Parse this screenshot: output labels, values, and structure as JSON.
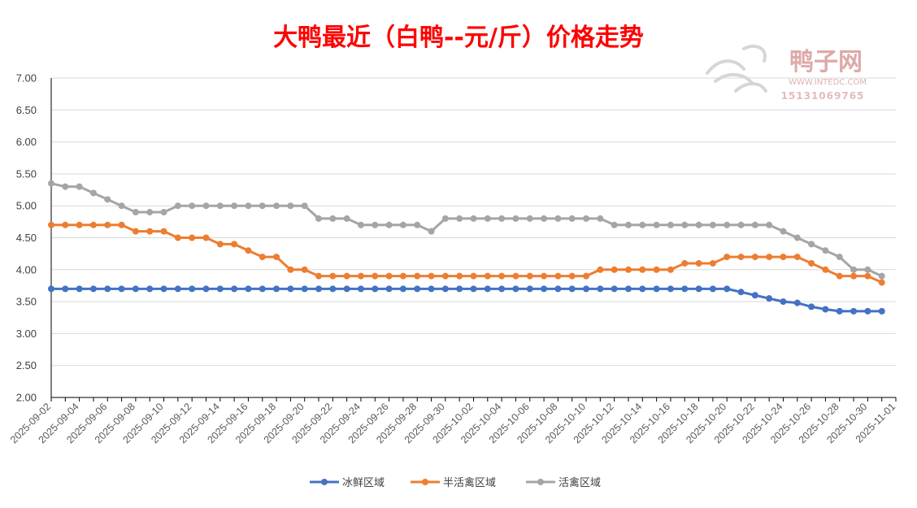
{
  "chart_data": {
    "type": "line",
    "title": "大鸭最近（白鸭--元/斤）价格走势",
    "ylim": [
      2.0,
      7.0
    ],
    "y_ticks": [
      "7.00",
      "6.50",
      "6.00",
      "5.50",
      "5.00",
      "4.50",
      "4.00",
      "3.50",
      "3.00",
      "2.50",
      "2.00"
    ],
    "x_tick_labels": [
      "2025-09-02",
      "2025-09-04",
      "2025-09-06",
      "2025-09-08",
      "2025-09-10",
      "2025-09-12",
      "2025-09-14",
      "2025-09-16",
      "2025-09-18",
      "2025-09-20",
      "2025-09-22",
      "2025-09-24",
      "2025-09-26",
      "2025-09-28",
      "2025-09-30",
      "2025-10-02",
      "2025-10-04",
      "2025-10-06",
      "2025-10-08",
      "2025-10-10",
      "2025-10-12",
      "2025-10-14",
      "2025-10-16",
      "2025-10-18",
      "2025-10-20",
      "2025-10-22",
      "2025-10-24",
      "2025-10-26",
      "2025-10-28",
      "2025-10-30",
      "2025-11-01"
    ],
    "x_start": "2025-09-02",
    "x_end": "2025-11-01",
    "grid": true,
    "legend_position": "bottom",
    "series": [
      {
        "name": "冰鲜区域",
        "color": "#4472C4",
        "points": [
          [
            "2025-09-02",
            3.7
          ],
          [
            "2025-09-03",
            3.7
          ],
          [
            "2025-09-04",
            3.7
          ],
          [
            "2025-09-05",
            3.7
          ],
          [
            "2025-09-06",
            3.7
          ],
          [
            "2025-09-07",
            3.7
          ],
          [
            "2025-09-08",
            3.7
          ],
          [
            "2025-09-09",
            3.7
          ],
          [
            "2025-09-10",
            3.7
          ],
          [
            "2025-09-11",
            3.7
          ],
          [
            "2025-09-12",
            3.7
          ],
          [
            "2025-09-13",
            3.7
          ],
          [
            "2025-09-14",
            3.7
          ],
          [
            "2025-09-15",
            3.7
          ],
          [
            "2025-09-16",
            3.7
          ],
          [
            "2025-09-17",
            3.7
          ],
          [
            "2025-09-18",
            3.7
          ],
          [
            "2025-09-19",
            3.7
          ],
          [
            "2025-09-20",
            3.7
          ],
          [
            "2025-09-21",
            3.7
          ],
          [
            "2025-09-22",
            3.7
          ],
          [
            "2025-09-23",
            3.7
          ],
          [
            "2025-09-24",
            3.7
          ],
          [
            "2025-09-25",
            3.7
          ],
          [
            "2025-09-26",
            3.7
          ],
          [
            "2025-09-27",
            3.7
          ],
          [
            "2025-09-28",
            3.7
          ],
          [
            "2025-09-29",
            3.7
          ],
          [
            "2025-09-30",
            3.7
          ],
          [
            "2025-10-01",
            3.7
          ],
          [
            "2025-10-02",
            3.7
          ],
          [
            "2025-10-03",
            3.7
          ],
          [
            "2025-10-04",
            3.7
          ],
          [
            "2025-10-05",
            3.7
          ],
          [
            "2025-10-06",
            3.7
          ],
          [
            "2025-10-07",
            3.7
          ],
          [
            "2025-10-08",
            3.7
          ],
          [
            "2025-10-09",
            3.7
          ],
          [
            "2025-10-10",
            3.7
          ],
          [
            "2025-10-11",
            3.7
          ],
          [
            "2025-10-12",
            3.7
          ],
          [
            "2025-10-13",
            3.7
          ],
          [
            "2025-10-14",
            3.7
          ],
          [
            "2025-10-15",
            3.7
          ],
          [
            "2025-10-16",
            3.7
          ],
          [
            "2025-10-17",
            3.7
          ],
          [
            "2025-10-18",
            3.7
          ],
          [
            "2025-10-19",
            3.7
          ],
          [
            "2025-10-20",
            3.7
          ],
          [
            "2025-10-21",
            3.65
          ],
          [
            "2025-10-22",
            3.6
          ],
          [
            "2025-10-23",
            3.55
          ],
          [
            "2025-10-24",
            3.5
          ],
          [
            "2025-10-25",
            3.48
          ],
          [
            "2025-10-26",
            3.42
          ],
          [
            "2025-10-27",
            3.38
          ],
          [
            "2025-10-28",
            3.35
          ],
          [
            "2025-10-29",
            3.35
          ],
          [
            "2025-10-30",
            3.35
          ],
          [
            "2025-10-31",
            3.35
          ]
        ]
      },
      {
        "name": "半活禽区域",
        "color": "#ED7D31",
        "points": [
          [
            "2025-09-02",
            4.7
          ],
          [
            "2025-09-03",
            4.7
          ],
          [
            "2025-09-04",
            4.7
          ],
          [
            "2025-09-05",
            4.7
          ],
          [
            "2025-09-06",
            4.7
          ],
          [
            "2025-09-07",
            4.7
          ],
          [
            "2025-09-08",
            4.6
          ],
          [
            "2025-09-09",
            4.6
          ],
          [
            "2025-09-10",
            4.6
          ],
          [
            "2025-09-11",
            4.5
          ],
          [
            "2025-09-12",
            4.5
          ],
          [
            "2025-09-13",
            4.5
          ],
          [
            "2025-09-14",
            4.4
          ],
          [
            "2025-09-15",
            4.4
          ],
          [
            "2025-09-16",
            4.3
          ],
          [
            "2025-09-17",
            4.2
          ],
          [
            "2025-09-18",
            4.2
          ],
          [
            "2025-09-19",
            4.0
          ],
          [
            "2025-09-20",
            4.0
          ],
          [
            "2025-09-21",
            3.9
          ],
          [
            "2025-09-22",
            3.9
          ],
          [
            "2025-09-23",
            3.9
          ],
          [
            "2025-09-24",
            3.9
          ],
          [
            "2025-09-25",
            3.9
          ],
          [
            "2025-09-26",
            3.9
          ],
          [
            "2025-09-27",
            3.9
          ],
          [
            "2025-09-28",
            3.9
          ],
          [
            "2025-09-29",
            3.9
          ],
          [
            "2025-09-30",
            3.9
          ],
          [
            "2025-10-01",
            3.9
          ],
          [
            "2025-10-02",
            3.9
          ],
          [
            "2025-10-03",
            3.9
          ],
          [
            "2025-10-04",
            3.9
          ],
          [
            "2025-10-05",
            3.9
          ],
          [
            "2025-10-06",
            3.9
          ],
          [
            "2025-10-07",
            3.9
          ],
          [
            "2025-10-08",
            3.9
          ],
          [
            "2025-10-09",
            3.9
          ],
          [
            "2025-10-10",
            3.9
          ],
          [
            "2025-10-11",
            4.0
          ],
          [
            "2025-10-12",
            4.0
          ],
          [
            "2025-10-13",
            4.0
          ],
          [
            "2025-10-14",
            4.0
          ],
          [
            "2025-10-15",
            4.0
          ],
          [
            "2025-10-16",
            4.0
          ],
          [
            "2025-10-17",
            4.1
          ],
          [
            "2025-10-18",
            4.1
          ],
          [
            "2025-10-19",
            4.1
          ],
          [
            "2025-10-20",
            4.2
          ],
          [
            "2025-10-21",
            4.2
          ],
          [
            "2025-10-22",
            4.2
          ],
          [
            "2025-10-23",
            4.2
          ],
          [
            "2025-10-24",
            4.2
          ],
          [
            "2025-10-25",
            4.2
          ],
          [
            "2025-10-26",
            4.1
          ],
          [
            "2025-10-27",
            4.0
          ],
          [
            "2025-10-28",
            3.9
          ],
          [
            "2025-10-29",
            3.9
          ],
          [
            "2025-10-30",
            3.9
          ],
          [
            "2025-10-31",
            3.8
          ]
        ]
      },
      {
        "name": "活禽区域",
        "color": "#A5A5A5",
        "points": [
          [
            "2025-09-02",
            5.35
          ],
          [
            "2025-09-03",
            5.3
          ],
          [
            "2025-09-04",
            5.3
          ],
          [
            "2025-09-05",
            5.2
          ],
          [
            "2025-09-06",
            5.1
          ],
          [
            "2025-09-07",
            5.0
          ],
          [
            "2025-09-08",
            4.9
          ],
          [
            "2025-09-09",
            4.9
          ],
          [
            "2025-09-10",
            4.9
          ],
          [
            "2025-09-11",
            5.0
          ],
          [
            "2025-09-12",
            5.0
          ],
          [
            "2025-09-13",
            5.0
          ],
          [
            "2025-09-14",
            5.0
          ],
          [
            "2025-09-15",
            5.0
          ],
          [
            "2025-09-16",
            5.0
          ],
          [
            "2025-09-17",
            5.0
          ],
          [
            "2025-09-18",
            5.0
          ],
          [
            "2025-09-19",
            5.0
          ],
          [
            "2025-09-20",
            5.0
          ],
          [
            "2025-09-21",
            4.8
          ],
          [
            "2025-09-22",
            4.8
          ],
          [
            "2025-09-23",
            4.8
          ],
          [
            "2025-09-24",
            4.7
          ],
          [
            "2025-09-25",
            4.7
          ],
          [
            "2025-09-26",
            4.7
          ],
          [
            "2025-09-27",
            4.7
          ],
          [
            "2025-09-28",
            4.7
          ],
          [
            "2025-09-29",
            4.6
          ],
          [
            "2025-09-30",
            4.8
          ],
          [
            "2025-10-01",
            4.8
          ],
          [
            "2025-10-02",
            4.8
          ],
          [
            "2025-10-03",
            4.8
          ],
          [
            "2025-10-04",
            4.8
          ],
          [
            "2025-10-05",
            4.8
          ],
          [
            "2025-10-06",
            4.8
          ],
          [
            "2025-10-07",
            4.8
          ],
          [
            "2025-10-08",
            4.8
          ],
          [
            "2025-10-09",
            4.8
          ],
          [
            "2025-10-10",
            4.8
          ],
          [
            "2025-10-11",
            4.8
          ],
          [
            "2025-10-12",
            4.7
          ],
          [
            "2025-10-13",
            4.7
          ],
          [
            "2025-10-14",
            4.7
          ],
          [
            "2025-10-15",
            4.7
          ],
          [
            "2025-10-16",
            4.7
          ],
          [
            "2025-10-17",
            4.7
          ],
          [
            "2025-10-18",
            4.7
          ],
          [
            "2025-10-19",
            4.7
          ],
          [
            "2025-10-20",
            4.7
          ],
          [
            "2025-10-21",
            4.7
          ],
          [
            "2025-10-22",
            4.7
          ],
          [
            "2025-10-23",
            4.7
          ],
          [
            "2025-10-24",
            4.6
          ],
          [
            "2025-10-25",
            4.5
          ],
          [
            "2025-10-26",
            4.4
          ],
          [
            "2025-10-27",
            4.3
          ],
          [
            "2025-10-28",
            4.2
          ],
          [
            "2025-10-29",
            4.0
          ],
          [
            "2025-10-30",
            4.0
          ],
          [
            "2025-10-31",
            3.9
          ]
        ]
      }
    ]
  },
  "watermark": {
    "logo_text": "鸭子网",
    "url": "WWW.INTEDC.COM",
    "phone": "15131069765",
    "color": "#d9a5a5"
  },
  "colors": {
    "title": "#FF0000",
    "axis": "#000000",
    "grid": "#D9D9D9"
  }
}
